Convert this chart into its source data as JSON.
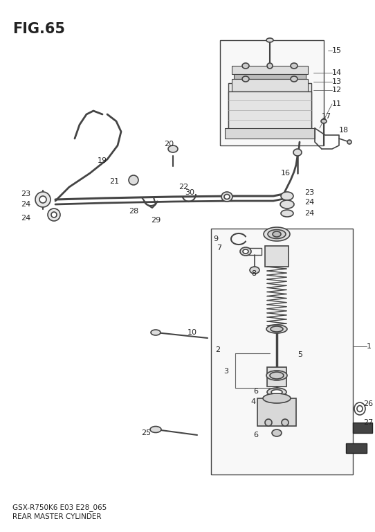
{
  "title": "FIG.65",
  "subtitle_line1": "GSX-R750K6 E03 E28_065",
  "subtitle_line2": "REAR MASTER CYLINDER",
  "bg_color": "#ffffff",
  "lc": "#444444",
  "tc": "#222222",
  "fig_width": 5.42,
  "fig_height": 7.68,
  "dpi": 100
}
